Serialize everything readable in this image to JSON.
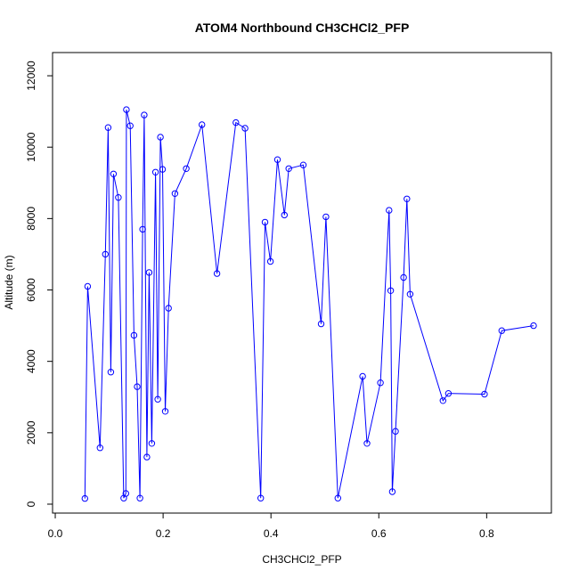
{
  "chart_data": {
    "type": "line",
    "title": "ATOM4 Northbound CH3CHCl2_PFP",
    "xlabel": "CH3CHCl2_PFP",
    "ylabel": "Altitude (m)",
    "xlim": [
      -0.005,
      0.92
    ],
    "ylim": [
      -250,
      12650
    ],
    "x_ticks": [
      0.0,
      0.2,
      0.4,
      0.6,
      0.8
    ],
    "x_tick_labels": [
      "0.0",
      "0.2",
      "0.4",
      "0.6",
      "0.8"
    ],
    "y_ticks": [
      0,
      2000,
      4000,
      6000,
      8000,
      10000,
      12000
    ],
    "y_tick_labels": [
      "0",
      "2000",
      "4000",
      "6000",
      "8000",
      "10000",
      "12000"
    ],
    "series_color": "#0000ff",
    "markers": "open-circle",
    "grid": false,
    "legend": "none",
    "series": [
      {
        "x": [
          0.055,
          0.06,
          0.083,
          0.093,
          0.098,
          0.103,
          0.108,
          0.117,
          0.127,
          0.131,
          0.132,
          0.139,
          0.146,
          0.152,
          0.157,
          0.162,
          0.165,
          0.17,
          0.174,
          0.179,
          0.186,
          0.19,
          0.195,
          0.199,
          0.204,
          0.21,
          0.222,
          0.243,
          0.272,
          0.3,
          0.335,
          0.352,
          0.381,
          0.389,
          0.399,
          0.412,
          0.425,
          0.433,
          0.46,
          0.493,
          0.502,
          0.524,
          0.57,
          0.578,
          0.603,
          0.619,
          0.622,
          0.625,
          0.631,
          0.646,
          0.652,
          0.658,
          0.719,
          0.729,
          0.796,
          0.828,
          0.887
        ],
        "y": [
          160,
          6100,
          1580,
          7000,
          10550,
          3700,
          9250,
          8590,
          170,
          300,
          11050,
          10600,
          4730,
          3290,
          170,
          7700,
          10900,
          1320,
          6490,
          1700,
          9300,
          2940,
          10280,
          9380,
          2600,
          5490,
          8700,
          9400,
          10630,
          6460,
          10690,
          10530,
          170,
          7900,
          6800,
          9650,
          8100,
          9400,
          9500,
          5050,
          8050,
          170,
          3580,
          1700,
          3400,
          8230,
          5980,
          350,
          2040,
          6350,
          8550,
          5880,
          2900,
          3100,
          3080,
          4860,
          5000
        ]
      }
    ]
  }
}
